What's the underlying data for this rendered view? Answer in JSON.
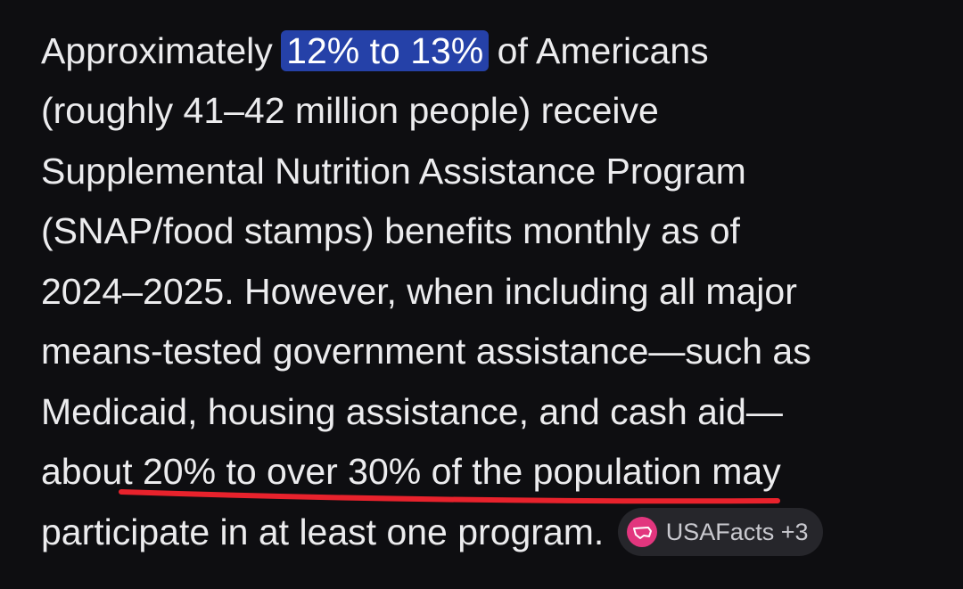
{
  "paragraph": {
    "lines": [
      [
        "Approximately ",
        "12% to 13%",
        " of Americans"
      ],
      [
        "(roughly 41–42 million people) receive"
      ],
      [
        "Supplemental Nutrition Assistance Program"
      ],
      [
        "(SNAP/food stamps) benefits monthly as of"
      ],
      [
        "2024–2025. However, when including all major"
      ],
      [
        "means-tested government assistance—such as"
      ],
      [
        "Medicaid, housing assistance, and cash aid—"
      ],
      [
        "about ",
        "20% to over 30% of the population",
        " may"
      ],
      [
        "participate in at least one program. "
      ]
    ],
    "source": "USAFacts +3"
  }
}
